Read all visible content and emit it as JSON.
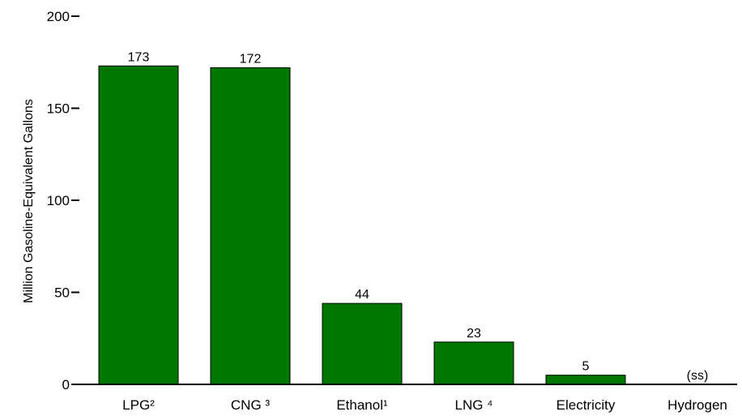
{
  "chart_data": {
    "type": "bar",
    "title": "",
    "xlabel": "",
    "ylabel": "Million Gasoline-Equivalent Gallons",
    "ylim": [
      0,
      200
    ],
    "yticks": [
      "0",
      "50",
      "100",
      "150",
      "200"
    ],
    "categories": [
      "LPG²",
      "CNG ³",
      "Ethanol¹",
      "LNG ⁴",
      "Electricity",
      "Hydrogen"
    ],
    "values": [
      173,
      172,
      44,
      23,
      5,
      0
    ],
    "data_labels": [
      "173",
      "172",
      "44",
      "23",
      "5",
      "(ss)"
    ],
    "bar_color": "#007800",
    "grid": false,
    "legend": "none"
  }
}
